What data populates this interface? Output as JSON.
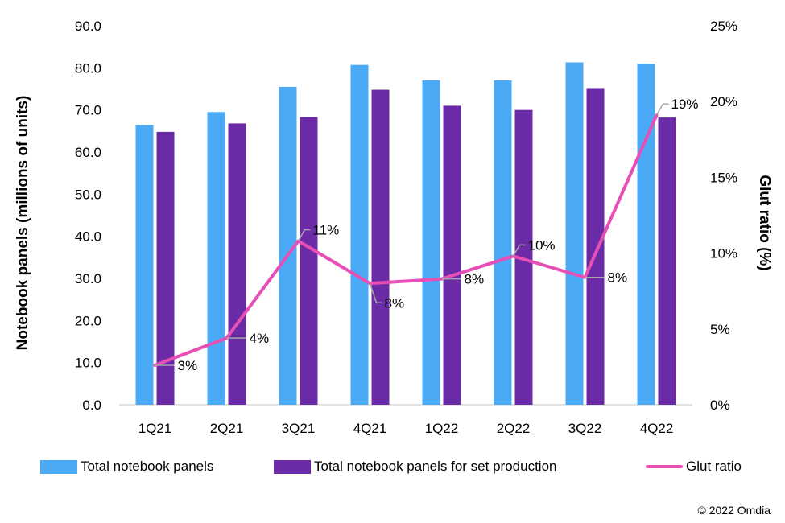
{
  "chart_data": {
    "type": "bar",
    "categories": [
      "1Q21",
      "2Q21",
      "3Q21",
      "4Q21",
      "1Q22",
      "2Q22",
      "3Q22",
      "4Q22"
    ],
    "series": [
      {
        "name": "Total notebook panels",
        "type": "bar",
        "axis": "left",
        "color": "#4aaaf5",
        "values": [
          66.5,
          69.5,
          75.5,
          80.7,
          77.0,
          77.0,
          81.3,
          81.0
        ]
      },
      {
        "name": "Total notebook panels for set production",
        "type": "bar",
        "axis": "left",
        "color": "#6b2aa6",
        "values": [
          64.8,
          66.8,
          68.3,
          74.8,
          71.0,
          70.0,
          75.2,
          68.2
        ]
      },
      {
        "name": "Glut ratio",
        "type": "line",
        "axis": "right",
        "color": "#e84fb6",
        "values": [
          2.6,
          4.4,
          10.8,
          8.0,
          8.3,
          9.8,
          8.4,
          19.1
        ],
        "labels": [
          "3%",
          "4%",
          "11%",
          "8%",
          "8%",
          "10%",
          "8%",
          "19%"
        ]
      }
    ],
    "ylabel": "Notebook panels (millions of units)",
    "y2label": "Glut ratio (%)",
    "ylim": [
      0,
      90
    ],
    "yticks": [
      "0.0",
      "10.0",
      "20.0",
      "30.0",
      "40.0",
      "50.0",
      "60.0",
      "70.0",
      "80.0",
      "90.0"
    ],
    "y2lim": [
      0,
      25
    ],
    "y2ticks": [
      "0%",
      "5%",
      "10%",
      "15%",
      "20%",
      "25%"
    ],
    "grid": false,
    "legend_position": "bottom",
    "credit": "© 2022 Omdia"
  }
}
